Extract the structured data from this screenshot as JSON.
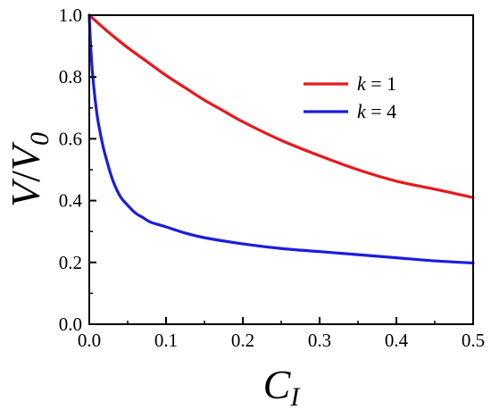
{
  "chart_data": {
    "type": "line",
    "xlabel": {
      "main": "C",
      "sub": "I"
    },
    "ylabel": {
      "num": "V",
      "den_main": "V",
      "den_sub": "0"
    },
    "xlim": [
      0,
      0.5
    ],
    "ylim": [
      0,
      1.0
    ],
    "xticks": [
      "0.0",
      "0.1",
      "0.2",
      "0.3",
      "0.4",
      "0.5"
    ],
    "yticks": [
      "0.0",
      "0.2",
      "0.4",
      "0.6",
      "0.8",
      "1.0"
    ],
    "grid": false,
    "legend_position": "top-right",
    "series": [
      {
        "name": "k = 1",
        "name_var": "k",
        "name_rest": " = 1",
        "color": "#e8191c",
        "x": [
          0,
          0.025,
          0.05,
          0.075,
          0.1,
          0.125,
          0.15,
          0.175,
          0.2,
          0.25,
          0.3,
          0.35,
          0.4,
          0.45,
          0.5
        ],
        "y": [
          1.0,
          0.945,
          0.895,
          0.85,
          0.805,
          0.765,
          0.725,
          0.69,
          0.655,
          0.595,
          0.545,
          0.5,
          0.463,
          0.437,
          0.41
        ]
      },
      {
        "name": "k = 4",
        "name_var": "k",
        "name_rest": " = 4",
        "color": "#1c1ce0",
        "x": [
          0,
          0.002,
          0.005,
          0.01,
          0.015,
          0.02,
          0.03,
          0.04,
          0.05,
          0.06,
          0.07,
          0.08,
          0.1,
          0.125,
          0.15,
          0.2,
          0.25,
          0.3,
          0.35,
          0.4,
          0.45,
          0.5
        ],
        "y": [
          1.0,
          0.89,
          0.79,
          0.68,
          0.61,
          0.555,
          0.47,
          0.415,
          0.385,
          0.36,
          0.345,
          0.33,
          0.315,
          0.295,
          0.28,
          0.26,
          0.245,
          0.235,
          0.225,
          0.215,
          0.205,
          0.198
        ]
      }
    ]
  }
}
